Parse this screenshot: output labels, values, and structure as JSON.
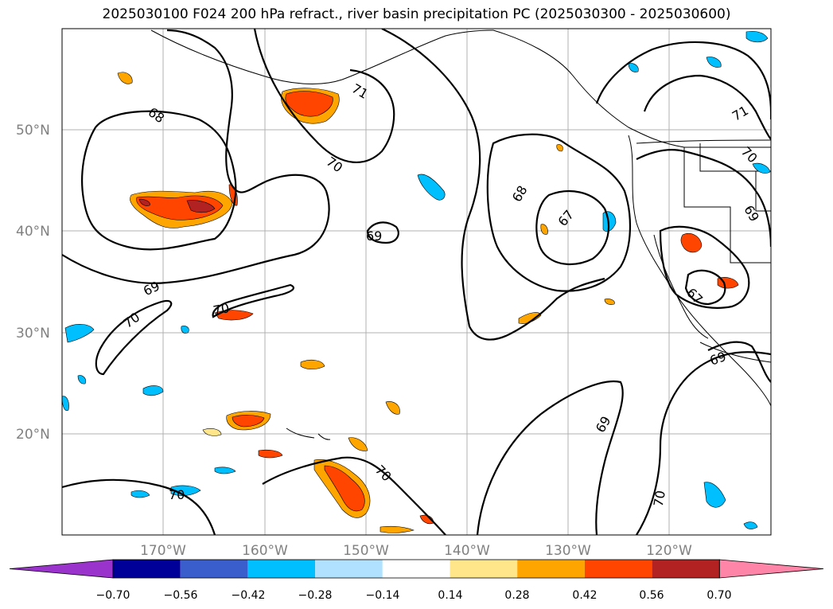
{
  "title": "2025030100 F024 200 hPa refract., river basin precipitation PC (2025030300 - 2025030600)",
  "map": {
    "lat_labels": [
      "50°N",
      "40°N",
      "30°N",
      "20°N"
    ],
    "lon_labels": [
      "170°W",
      "160°W",
      "150°W",
      "140°W",
      "130°W",
      "120°W"
    ],
    "contour_labels": [
      "68",
      "71",
      "70",
      "69",
      "69",
      "70",
      "70",
      "70",
      "68",
      "67",
      "71",
      "70",
      "69",
      "67",
      "69",
      "69",
      "70"
    ],
    "contour_color": "#000000",
    "grid": true
  },
  "colorbar": {
    "tick_labels": [
      "−0.70",
      "−0.56",
      "−0.42",
      "−0.28",
      "−0.14",
      "0.14",
      "0.28",
      "0.42",
      "0.56",
      "0.70"
    ],
    "colors": [
      "#9933cc",
      "#000099",
      "#3a5fcd",
      "#00bfff",
      "#b0e2ff",
      "#ffffff",
      "#ffe68a",
      "#ffa500",
      "#ff4500",
      "#b22222",
      "#ff85a8"
    ]
  }
}
